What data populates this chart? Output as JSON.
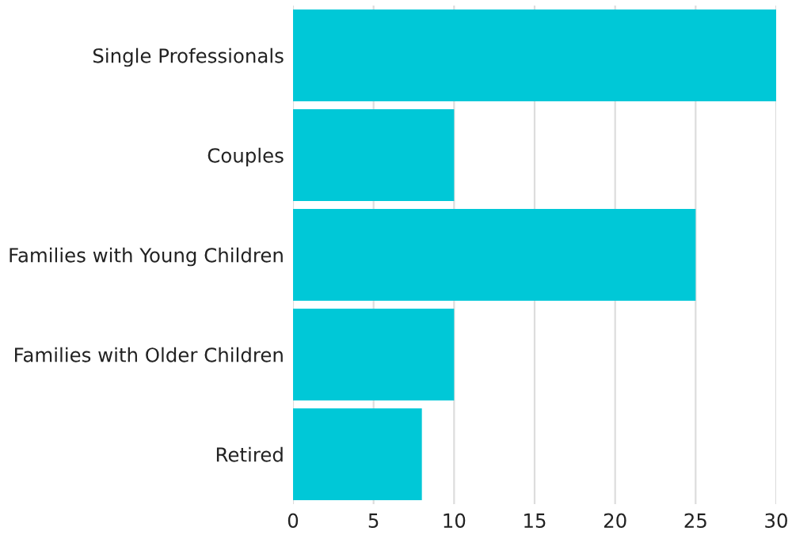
{
  "chart_data": {
    "type": "bar",
    "orientation": "horizontal",
    "categories": [
      "Single Professionals",
      "Couples",
      "Families with Young Children",
      "Families with Older Children",
      "Retired"
    ],
    "values": [
      30,
      10,
      25,
      10,
      8
    ],
    "color": "#00c8d7",
    "xlim": [
      0,
      30
    ],
    "xticks": [
      0,
      5,
      10,
      15,
      20,
      25,
      30
    ],
    "grid": "x"
  }
}
